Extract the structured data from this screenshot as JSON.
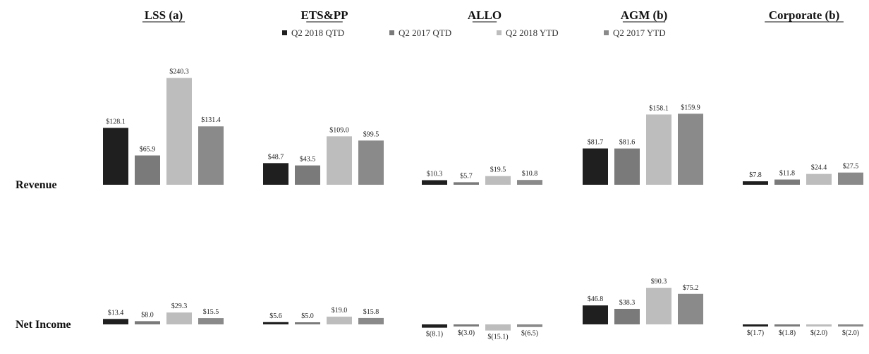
{
  "chart_data": {
    "type": "bar",
    "legend_position": "top",
    "grid": false,
    "segments": [
      "LSS (a)",
      "ETS&PP",
      "ALLO",
      "AGM (b)",
      "Corporate (b)"
    ],
    "series": [
      {
        "name": "Q2   2018 QTD",
        "color": "#1f1f1f"
      },
      {
        "name": "Q2   2017 QTD",
        "color": "#7a7a7a"
      },
      {
        "name": "Q2   2018 YTD",
        "color": "#bdbdbd"
      },
      {
        "name": "Q2   2017 YTD",
        "color": "#8a8a8a"
      }
    ],
    "rows": [
      {
        "label": "Revenue",
        "groups": [
          {
            "values": [
              128.1,
              65.9,
              240.3,
              131.4
            ],
            "labels": [
              "$128.1",
              "$65.9",
              "$240.3",
              "$131.4"
            ]
          },
          {
            "values": [
              48.7,
              43.5,
              109.0,
              99.5
            ],
            "labels": [
              "$48.7",
              "$43.5",
              "$109.0",
              "$99.5"
            ]
          },
          {
            "values": [
              10.3,
              5.7,
              19.5,
              10.8
            ],
            "labels": [
              "$10.3",
              "$5.7",
              "$19.5",
              "$10.8"
            ]
          },
          {
            "values": [
              81.7,
              81.6,
              158.1,
              159.9
            ],
            "labels": [
              "$81.7",
              "$81.6",
              "$158.1",
              "$159.9"
            ]
          },
          {
            "values": [
              7.8,
              11.8,
              24.4,
              27.5
            ],
            "labels": [
              "$7.8",
              "$11.8",
              "$24.4",
              "$27.5"
            ]
          }
        ]
      },
      {
        "label": "Net Income",
        "groups": [
          {
            "values": [
              13.4,
              8.0,
              29.3,
              15.5
            ],
            "labels": [
              "$13.4",
              "$8.0",
              "$29.3",
              "$15.5"
            ]
          },
          {
            "values": [
              5.6,
              5.0,
              19.0,
              15.8
            ],
            "labels": [
              "$5.6",
              "$5.0",
              "$19.0",
              "$15.8"
            ]
          },
          {
            "values": [
              -8.1,
              -3.0,
              -15.1,
              -6.5
            ],
            "labels": [
              "$(8.1)",
              "$(3.0)",
              "$(15.1)",
              "$(6.5)"
            ]
          },
          {
            "values": [
              46.8,
              38.3,
              90.3,
              75.2
            ],
            "labels": [
              "$46.8",
              "$38.3",
              "$90.3",
              "$75.2"
            ]
          },
          {
            "values": [
              -1.7,
              -1.8,
              -2.0,
              -2.0
            ],
            "labels": [
              "$(1.7)",
              "$(1.8)",
              "$(2.0)",
              "$(2.0)"
            ]
          }
        ]
      }
    ]
  }
}
